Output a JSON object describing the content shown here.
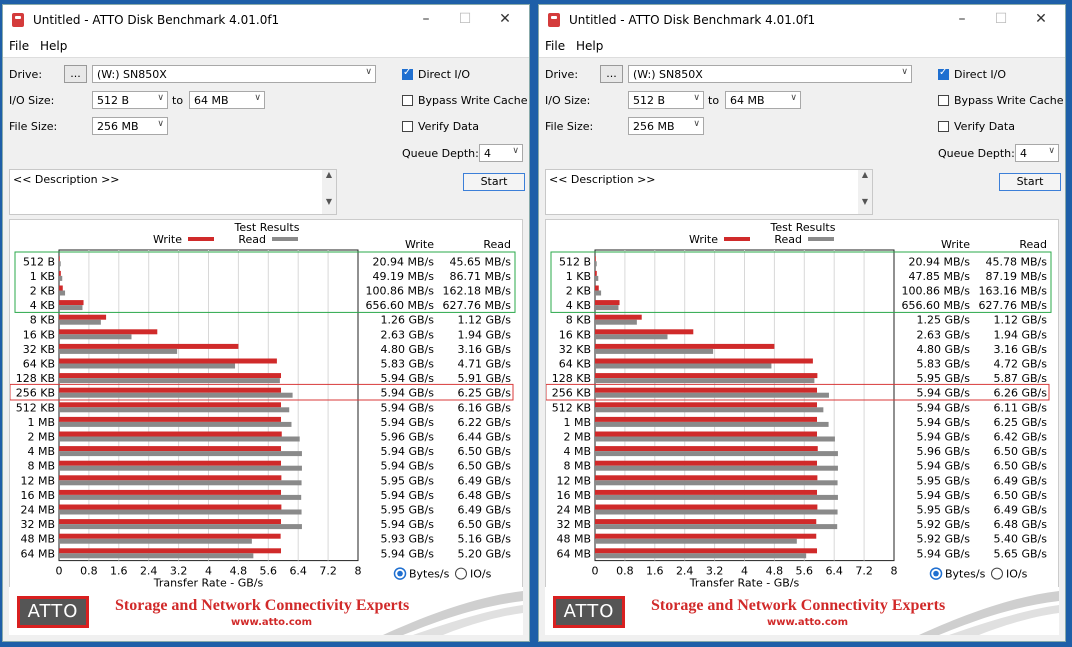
{
  "windows": [
    {
      "title": "Untitled - ATTO Disk Benchmark 4.01.0f1",
      "menu": [
        "File",
        "Help"
      ],
      "drive_label": "Drive:",
      "drive_browse": "...",
      "drive_value": "(W:) SN850X",
      "io_size_label": "I/O Size:",
      "io_from": "512 B",
      "io_to_label": "to",
      "io_to": "64 MB",
      "file_size_label": "File Size:",
      "file_size": "256 MB",
      "direct_io": "Direct I/O",
      "bypass": "Bypass Write Cache",
      "verify": "Verify Data",
      "queue_label": "Queue Depth:",
      "queue_value": "4",
      "start": "Start",
      "description": "<< Description >>",
      "results_title": "Test Results",
      "legend_write": "Write",
      "legend_read": "Read",
      "col_write": "Write",
      "col_read": "Read",
      "xlabel": "Transfer Rate - GB/s",
      "radio_bytes": "Bytes/s",
      "radio_io": "IO/s",
      "brand_logo": "ATTO",
      "brand_tagline": "Storage and Network Connectivity Experts",
      "brand_url": "www.atto.com",
      "colors": {
        "write": "#d02a2a",
        "read": "#8a8a8a",
        "green_box": "#2aa84a",
        "red_box": "#d83a3a"
      },
      "chart_data": {
        "type": "bar",
        "categories": [
          "512 B",
          "1 KB",
          "2 KB",
          "4 KB",
          "8 KB",
          "16 KB",
          "32 KB",
          "64 KB",
          "128 KB",
          "256 KB",
          "512 KB",
          "1 MB",
          "2 MB",
          "4 MB",
          "8 MB",
          "12 MB",
          "16 MB",
          "24 MB",
          "32 MB",
          "48 MB",
          "64 MB"
        ],
        "series": [
          {
            "name": "Write",
            "values": [
              0.02094,
              0.04919,
              0.10086,
              0.6566,
              1.26,
              2.63,
              4.8,
              5.83,
              5.94,
              5.94,
              5.94,
              5.94,
              5.96,
              5.94,
              5.94,
              5.95,
              5.94,
              5.95,
              5.94,
              5.93,
              5.94
            ]
          },
          {
            "name": "Read",
            "values": [
              0.04565,
              0.08671,
              0.16218,
              0.62776,
              1.12,
              1.94,
              3.16,
              4.71,
              5.91,
              6.25,
              6.16,
              6.22,
              6.44,
              6.5,
              6.5,
              6.49,
              6.48,
              6.49,
              6.5,
              5.16,
              5.2
            ]
          }
        ],
        "write_text": [
          "20.94 MB/s",
          "49.19 MB/s",
          "100.86 MB/s",
          "656.60 MB/s",
          "1.26 GB/s",
          "2.63 GB/s",
          "4.80 GB/s",
          "5.83 GB/s",
          "5.94 GB/s",
          "5.94 GB/s",
          "5.94 GB/s",
          "5.94 GB/s",
          "5.96 GB/s",
          "5.94 GB/s",
          "5.94 GB/s",
          "5.95 GB/s",
          "5.94 GB/s",
          "5.95 GB/s",
          "5.94 GB/s",
          "5.93 GB/s",
          "5.94 GB/s"
        ],
        "read_text": [
          "45.65 MB/s",
          "86.71 MB/s",
          "162.18 MB/s",
          "627.76 MB/s",
          "1.12 GB/s",
          "1.94 GB/s",
          "3.16 GB/s",
          "4.71 GB/s",
          "5.91 GB/s",
          "6.25 GB/s",
          "6.16 GB/s",
          "6.22 GB/s",
          "6.44 GB/s",
          "6.50 GB/s",
          "6.50 GB/s",
          "6.49 GB/s",
          "6.48 GB/s",
          "6.49 GB/s",
          "6.50 GB/s",
          "5.16 GB/s",
          "5.20 GB/s"
        ],
        "xticks": [
          "0",
          "0.8",
          "1.6",
          "2.4",
          "3.2",
          "4",
          "4.8",
          "5.6",
          "6.4",
          "7.2",
          "8"
        ],
        "xlim": [
          0,
          8
        ],
        "xlabel": "Transfer Rate - GB/s",
        "highlighted_row": "256 KB",
        "grid": true
      }
    },
    {
      "title": "Untitled - ATTO Disk Benchmark 4.01.0f1",
      "menu": [
        "File",
        "Help"
      ],
      "drive_label": "Drive:",
      "drive_browse": "...",
      "drive_value": "(W:) SN850X",
      "io_size_label": "I/O Size:",
      "io_from": "512 B",
      "io_to_label": "to",
      "io_to": "64 MB",
      "file_size_label": "File Size:",
      "file_size": "256 MB",
      "direct_io": "Direct I/O",
      "bypass": "Bypass Write Cache",
      "verify": "Verify Data",
      "queue_label": "Queue Depth:",
      "queue_value": "4",
      "start": "Start",
      "description": "<< Description >>",
      "results_title": "Test Results",
      "legend_write": "Write",
      "legend_read": "Read",
      "col_write": "Write",
      "col_read": "Read",
      "xlabel": "Transfer Rate - GB/s",
      "radio_bytes": "Bytes/s",
      "radio_io": "IO/s",
      "brand_logo": "ATTO",
      "brand_tagline": "Storage and Network Connectivity Experts",
      "brand_url": "www.atto.com",
      "colors": {
        "write": "#d02a2a",
        "read": "#8a8a8a",
        "green_box": "#2aa84a",
        "red_box": "#d83a3a"
      },
      "chart_data": {
        "type": "bar",
        "categories": [
          "512 B",
          "1 KB",
          "2 KB",
          "4 KB",
          "8 KB",
          "16 KB",
          "32 KB",
          "64 KB",
          "128 KB",
          "256 KB",
          "512 KB",
          "1 MB",
          "2 MB",
          "4 MB",
          "8 MB",
          "12 MB",
          "16 MB",
          "24 MB",
          "32 MB",
          "48 MB",
          "64 MB"
        ],
        "series": [
          {
            "name": "Write",
            "values": [
              0.02094,
              0.04785,
              0.10086,
              0.6566,
              1.25,
              2.63,
              4.8,
              5.83,
              5.95,
              5.94,
              5.94,
              5.94,
              5.94,
              5.96,
              5.94,
              5.95,
              5.94,
              5.95,
              5.92,
              5.92,
              5.94
            ]
          },
          {
            "name": "Read",
            "values": [
              0.04578,
              0.08719,
              0.16316,
              0.62776,
              1.12,
              1.94,
              3.16,
              4.72,
              5.87,
              6.26,
              6.11,
              6.25,
              6.42,
              6.5,
              6.5,
              6.49,
              6.5,
              6.49,
              6.48,
              5.4,
              5.65
            ]
          }
        ],
        "write_text": [
          "20.94 MB/s",
          "47.85 MB/s",
          "100.86 MB/s",
          "656.60 MB/s",
          "1.25 GB/s",
          "2.63 GB/s",
          "4.80 GB/s",
          "5.83 GB/s",
          "5.95 GB/s",
          "5.94 GB/s",
          "5.94 GB/s",
          "5.94 GB/s",
          "5.94 GB/s",
          "5.96 GB/s",
          "5.94 GB/s",
          "5.95 GB/s",
          "5.94 GB/s",
          "5.95 GB/s",
          "5.92 GB/s",
          "5.92 GB/s",
          "5.94 GB/s"
        ],
        "read_text": [
          "45.78 MB/s",
          "87.19 MB/s",
          "163.16 MB/s",
          "627.76 MB/s",
          "1.12 GB/s",
          "1.94 GB/s",
          "3.16 GB/s",
          "4.72 GB/s",
          "5.87 GB/s",
          "6.26 GB/s",
          "6.11 GB/s",
          "6.25 GB/s",
          "6.42 GB/s",
          "6.50 GB/s",
          "6.50 GB/s",
          "6.49 GB/s",
          "6.50 GB/s",
          "6.49 GB/s",
          "6.48 GB/s",
          "5.40 GB/s",
          "5.65 GB/s"
        ],
        "xticks": [
          "0",
          "0.8",
          "1.6",
          "2.4",
          "3.2",
          "4",
          "4.8",
          "5.6",
          "6.4",
          "7.2",
          "8"
        ],
        "xlim": [
          0,
          8
        ],
        "xlabel": "Transfer Rate - GB/s",
        "highlighted_row": "256 KB",
        "grid": true
      }
    }
  ]
}
